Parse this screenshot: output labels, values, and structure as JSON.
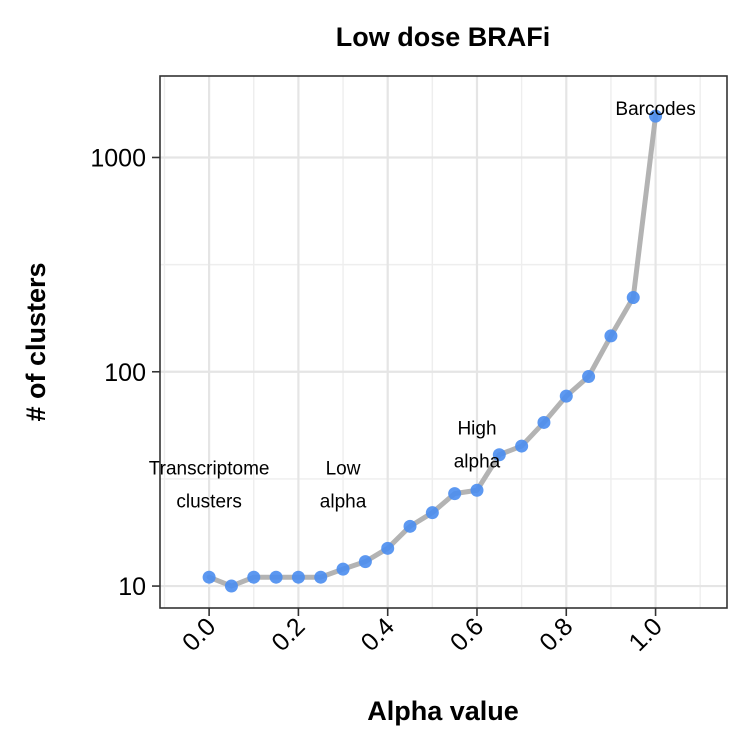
{
  "chart_data": {
    "type": "line",
    "title": "Low dose BRAFi",
    "xlabel": "Alpha value",
    "ylabel": "# of clusters",
    "xlim": [
      -0.11,
      1.16
    ],
    "ylim": [
      7.9,
      2400
    ],
    "y_scale": "log10",
    "grid": true,
    "x_ticks": [
      {
        "value": 0.0,
        "label": "0.0"
      },
      {
        "value": 0.2,
        "label": "0.2"
      },
      {
        "value": 0.4,
        "label": "0.4"
      },
      {
        "value": 0.6,
        "label": "0.6"
      },
      {
        "value": 0.8,
        "label": "0.8"
      },
      {
        "value": 1.0,
        "label": "1.0"
      }
    ],
    "y_ticks": [
      {
        "value": 10,
        "label": "10"
      },
      {
        "value": 100,
        "label": "100"
      },
      {
        "value": 1000,
        "label": "1000"
      }
    ],
    "x": [
      0.0,
      0.05,
      0.1,
      0.15,
      0.2,
      0.25,
      0.3,
      0.35,
      0.4,
      0.45,
      0.5,
      0.55,
      0.6,
      0.65,
      0.7,
      0.75,
      0.8,
      0.85,
      0.9,
      0.95,
      1.0
    ],
    "y": [
      11,
      10,
      11,
      11,
      11,
      11,
      12,
      13,
      15,
      19,
      22,
      27,
      28,
      41,
      45,
      58,
      77,
      95,
      147,
      222,
      1560
    ],
    "line_color": "#b3b3b3",
    "point_color": "#4a8df0",
    "annotations": [
      {
        "lines": [
          "Transcriptome",
          "clusters"
        ],
        "x": 0.0,
        "y": 30
      },
      {
        "lines": [
          "Low",
          "alpha"
        ],
        "x": 0.3,
        "y": 30
      },
      {
        "lines": [
          "High",
          "alpha"
        ],
        "x": 0.6,
        "y": 46
      },
      {
        "lines": [
          "Barcodes"
        ],
        "x": 1.0,
        "y": 1700
      }
    ]
  }
}
